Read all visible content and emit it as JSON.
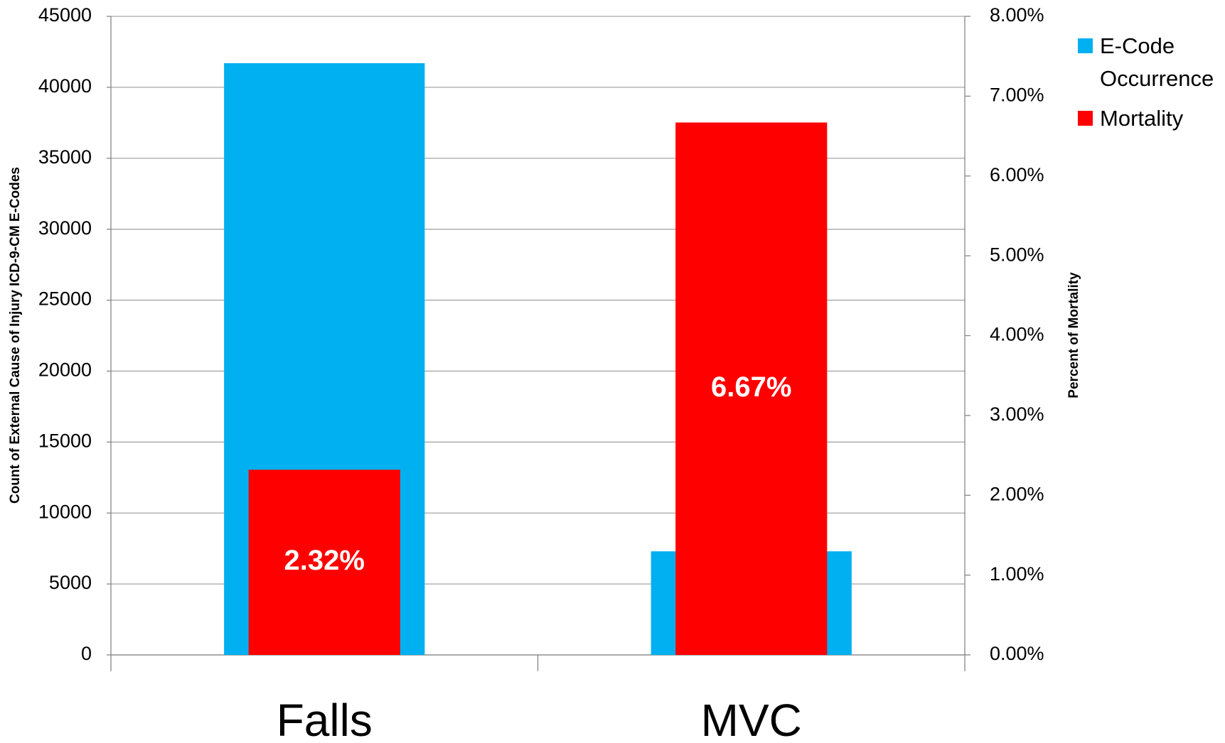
{
  "chart_data": {
    "type": "bar",
    "categories": [
      "Falls",
      "MVC"
    ],
    "series": [
      {
        "name": "E-Code Occurrence",
        "color": "#00b0f0",
        "values": [
          41700,
          7300
        ]
      },
      {
        "name": "Mortality",
        "color": "#ff0000",
        "axis": "y2",
        "values": [
          2.32,
          6.67
        ],
        "value_labels": [
          "2.32%",
          "6.67%"
        ]
      }
    ],
    "ylabel": "Count of External Cause of Injury ICD-9-CM E-Codes",
    "y2label": "Percent of Mortality",
    "ylim": [
      0,
      45000
    ],
    "yticks": [
      0,
      5000,
      10000,
      15000,
      20000,
      25000,
      30000,
      35000,
      40000,
      45000
    ],
    "y2lim": [
      0,
      8
    ],
    "y2ticks": [
      {
        "value": 0,
        "label": "0.00%"
      },
      {
        "value": 1,
        "label": "1.00%"
      },
      {
        "value": 2,
        "label": "2.00%"
      },
      {
        "value": 3,
        "label": "3.00%"
      },
      {
        "value": 4,
        "label": "4.00%"
      },
      {
        "value": 5,
        "label": "5.00%"
      },
      {
        "value": 6,
        "label": "6.00%"
      },
      {
        "value": 7,
        "label": "7.00%"
      },
      {
        "value": 8,
        "label": "8.00%"
      }
    ],
    "grid": true,
    "legend": "right"
  }
}
